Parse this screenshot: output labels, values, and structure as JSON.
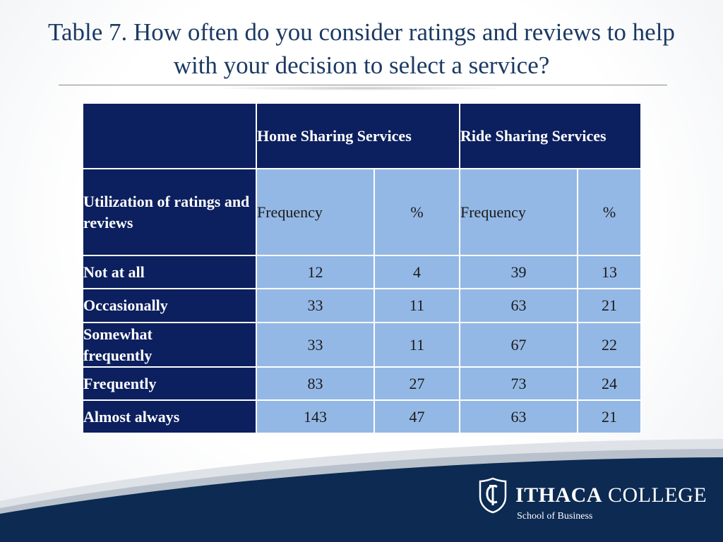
{
  "slide": {
    "title": "Table 7. How often do you consider ratings and reviews to help with your decision to select a service?"
  },
  "table": {
    "group_headers": [
      "Home Sharing Services",
      "Ride Sharing Services"
    ],
    "row_header_label": "Utilization of ratings and reviews",
    "sub_headers": [
      "Frequency",
      "%",
      "Frequency",
      "%"
    ],
    "rows": [
      {
        "label": "Not at all",
        "values": [
          "12",
          "4",
          "39",
          "13"
        ]
      },
      {
        "label": "Occasionally",
        "values": [
          "33",
          "11",
          "63",
          "21"
        ]
      },
      {
        "label": "Somewhat frequently",
        "values": [
          "33",
          "11",
          "67",
          "22"
        ]
      },
      {
        "label": "Frequently",
        "values": [
          "83",
          "27",
          "73",
          "24"
        ]
      },
      {
        "label": "Almost always",
        "values": [
          "143",
          "47",
          "63",
          "21"
        ]
      }
    ]
  },
  "footer": {
    "logo_name_bold": "ITHACA",
    "logo_name_rest": "COLLEGE",
    "logo_sub": "School of Business"
  },
  "colors": {
    "navy": "#0c1f5e",
    "light_blue": "#94b8e5",
    "title_blue": "#1b3a63",
    "footer_navy": "#0c2a52"
  }
}
